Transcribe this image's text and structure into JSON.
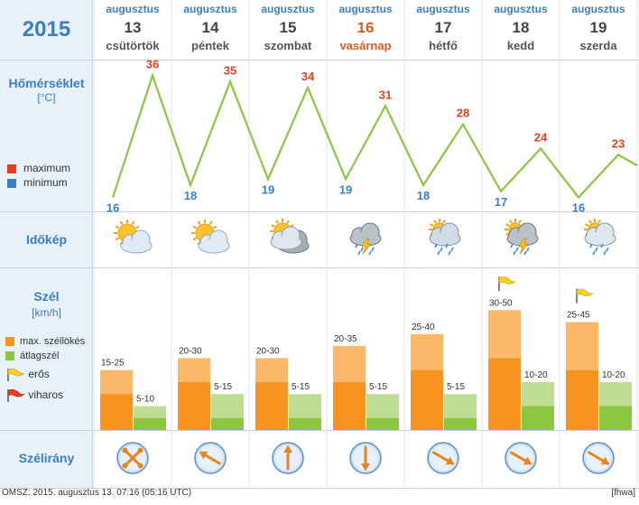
{
  "year": "2015",
  "days": [
    {
      "month": "augusztus",
      "day": "13",
      "weekday": "csütörtök",
      "sunday": false,
      "weather": "partly-cloudy",
      "wind_max": "15-25",
      "wind_avg": "5-10",
      "gust_flag": ""
    },
    {
      "month": "augusztus",
      "day": "14",
      "weekday": "péntek",
      "sunday": false,
      "weather": "partly-cloudy",
      "wind_max": "20-30",
      "wind_avg": "5-15",
      "gust_flag": ""
    },
    {
      "month": "augusztus",
      "day": "15",
      "weekday": "szombat",
      "sunday": false,
      "weather": "mostly-cloudy",
      "wind_max": "20-30",
      "wind_avg": "5-15",
      "gust_flag": ""
    },
    {
      "month": "augusztus",
      "day": "16",
      "weekday": "vasárnap",
      "sunday": true,
      "weather": "thunderstorm",
      "wind_max": "20-35",
      "wind_avg": "5-15",
      "gust_flag": ""
    },
    {
      "month": "augusztus",
      "day": "17",
      "weekday": "hétfő",
      "sunday": false,
      "weather": "rain",
      "wind_max": "25-40",
      "wind_avg": "5-15",
      "gust_flag": ""
    },
    {
      "month": "augusztus",
      "day": "18",
      "weekday": "kedd",
      "sunday": false,
      "weather": "thunderstorm-sun",
      "wind_max": "30-50",
      "wind_avg": "10-20",
      "gust_flag": "erős"
    },
    {
      "month": "augusztus",
      "day": "19",
      "weekday": "szerda",
      "sunday": false,
      "weather": "rain-sun",
      "wind_max": "25-45",
      "wind_avg": "10-20",
      "gust_flag": "erős"
    }
  ],
  "labels": {
    "temperature": "Hőmérséklet",
    "temperature_unit": "[°C]",
    "weather": "Időkép",
    "wind": "Szél",
    "wind_unit": "[km/h]",
    "wind_direction": "Szélirány"
  },
  "legend": {
    "maximum": "maximum",
    "minimum": "minimum",
    "max_gust": "max. széllökés",
    "avg_wind": "átlagszél",
    "strong": "erős",
    "stormy": "viharos"
  },
  "colors": {
    "max": "#e8401e",
    "min": "#3a7ec6",
    "line": "#8cc63f",
    "gust": "#f7931e",
    "avg": "#8cc63f"
  },
  "chart_data": {
    "type": "line",
    "categories": [
      "13",
      "14",
      "15",
      "16",
      "17",
      "18",
      "19"
    ],
    "series": [
      {
        "name": "maximum",
        "values": [
          36,
          35,
          34,
          31,
          28,
          24,
          23
        ]
      },
      {
        "name": "minimum",
        "values": [
          16,
          18,
          19,
          19,
          18,
          17,
          16
        ]
      }
    ]
  },
  "wind_data": {
    "gust_low": [
      15,
      20,
      20,
      20,
      25,
      30,
      25
    ],
    "gust_high": [
      25,
      30,
      30,
      35,
      40,
      50,
      45
    ],
    "avg_low": [
      5,
      5,
      5,
      5,
      5,
      10,
      10
    ],
    "avg_high": [
      10,
      15,
      15,
      15,
      15,
      20,
      20
    ]
  },
  "wind_direction_deg": [
    315,
    300,
    0,
    180,
    120,
    120,
    120
  ],
  "footer": {
    "left": "OMSZ: 2015. augusztus 13. 07:16 (05:16  UTC)",
    "right": "[fhwa]"
  }
}
